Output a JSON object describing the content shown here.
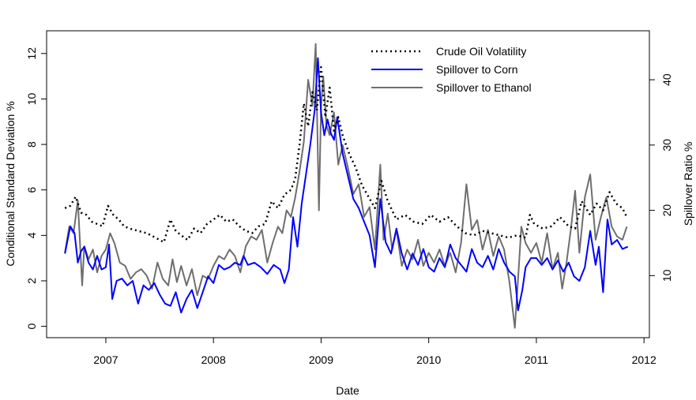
{
  "chart_data": {
    "type": "line",
    "xlabel": "Date",
    "ylabel_left": "Conditional Standard Deviation %",
    "ylabel_right": "Spillover Ratio %",
    "x_ticks": [
      "2007",
      "2008",
      "2009",
      "2010",
      "2011",
      "2012"
    ],
    "x_tick_values": [
      2007,
      2008,
      2009,
      2010,
      2011,
      2012
    ],
    "xlim": [
      2006.45,
      2012.05
    ],
    "y_left_ticks": [
      0,
      2,
      4,
      6,
      8,
      10,
      12
    ],
    "ylim_left": [
      -0.5,
      13.0
    ],
    "y_right_ticks": [
      10,
      20,
      30,
      40
    ],
    "ylim_right": [
      0.5,
      47.5
    ],
    "grid": false,
    "legend_position": "top-right",
    "series": [
      {
        "name": "Crude Oil Volatility",
        "axis": "left",
        "color": "#000000",
        "style": "dotted",
        "x": [
          2006.62,
          2006.67,
          2006.72,
          2006.77,
          2006.82,
          2006.87,
          2006.92,
          2006.97,
          2007.02,
          2007.07,
          2007.12,
          2007.17,
          2007.22,
          2007.3,
          2007.38,
          2007.46,
          2007.54,
          2007.6,
          2007.65,
          2007.7,
          2007.76,
          2007.82,
          2007.88,
          2007.94,
          2008.0,
          2008.06,
          2008.12,
          2008.18,
          2008.24,
          2008.3,
          2008.36,
          2008.42,
          2008.48,
          2008.54,
          2008.6,
          2008.66,
          2008.72,
          2008.76,
          2008.8,
          2008.84,
          2008.88,
          2008.92,
          2008.96,
          2009.0,
          2009.04,
          2009.08,
          2009.12,
          2009.16,
          2009.2,
          2009.26,
          2009.32,
          2009.38,
          2009.44,
          2009.5,
          2009.56,
          2009.62,
          2009.7,
          2009.78,
          2009.86,
          2009.94,
          2010.02,
          2010.1,
          2010.18,
          2010.26,
          2010.34,
          2010.42,
          2010.5,
          2010.58,
          2010.66,
          2010.74,
          2010.82,
          2010.9,
          2010.94,
          2010.98,
          2011.06,
          2011.14,
          2011.22,
          2011.3,
          2011.36,
          2011.42,
          2011.5,
          2011.56,
          2011.62,
          2011.68,
          2011.74,
          2011.8,
          2011.84
        ],
        "y": [
          5.2,
          5.3,
          5.7,
          5.0,
          4.9,
          4.6,
          4.5,
          4.4,
          5.3,
          4.9,
          4.7,
          4.4,
          4.3,
          4.2,
          4.1,
          3.9,
          3.7,
          4.7,
          4.2,
          4.0,
          3.8,
          4.3,
          4.1,
          4.5,
          4.7,
          4.9,
          4.6,
          4.7,
          4.4,
          4.2,
          4.1,
          4.4,
          4.5,
          5.5,
          5.2,
          5.8,
          6.0,
          6.5,
          8.0,
          9.8,
          8.8,
          10.3,
          9.5,
          11.4,
          9.2,
          10.5,
          8.6,
          9.2,
          8.4,
          7.6,
          7.0,
          6.2,
          5.7,
          5.2,
          6.4,
          5.5,
          4.7,
          4.9,
          4.6,
          4.5,
          4.9,
          4.6,
          4.8,
          4.4,
          4.1,
          4.0,
          4.2,
          4.1,
          4.0,
          3.9,
          4.0,
          3.9,
          4.9,
          4.5,
          4.3,
          4.4,
          4.8,
          4.4,
          4.3,
          5.5,
          4.9,
          5.4,
          5.1,
          5.9,
          5.4,
          5.2,
          4.8
        ]
      },
      {
        "name": "Spillover to Corn",
        "axis": "left",
        "color": "#0000ff",
        "style": "solid",
        "x": [
          2006.62,
          2006.67,
          2006.71,
          2006.74,
          2006.77,
          2006.8,
          2006.84,
          2006.88,
          2006.92,
          2006.96,
          2007.0,
          2007.03,
          2007.06,
          2007.1,
          2007.15,
          2007.2,
          2007.25,
          2007.3,
          2007.35,
          2007.4,
          2007.45,
          2007.5,
          2007.55,
          2007.6,
          2007.65,
          2007.7,
          2007.75,
          2007.8,
          2007.85,
          2007.9,
          2007.95,
          2008.0,
          2008.05,
          2008.1,
          2008.15,
          2008.2,
          2008.25,
          2008.28,
          2008.32,
          2008.38,
          2008.44,
          2008.5,
          2008.56,
          2008.62,
          2008.66,
          2008.7,
          2008.74,
          2008.78,
          2008.82,
          2008.86,
          2008.9,
          2008.94,
          2008.97,
          2009.0,
          2009.03,
          2009.06,
          2009.09,
          2009.12,
          2009.15,
          2009.2,
          2009.25,
          2009.3,
          2009.35,
          2009.4,
          2009.45,
          2009.5,
          2009.55,
          2009.6,
          2009.65,
          2009.7,
          2009.75,
          2009.8,
          2009.85,
          2009.9,
          2009.95,
          2010.0,
          2010.05,
          2010.1,
          2010.15,
          2010.2,
          2010.25,
          2010.3,
          2010.35,
          2010.4,
          2010.45,
          2010.5,
          2010.55,
          2010.6,
          2010.65,
          2010.7,
          2010.75,
          2010.8,
          2010.83,
          2010.87,
          2010.9,
          2010.95,
          2011.0,
          2011.05,
          2011.1,
          2011.15,
          2011.2,
          2011.25,
          2011.3,
          2011.35,
          2011.4,
          2011.45,
          2011.5,
          2011.55,
          2011.58,
          2011.62,
          2011.66,
          2011.7,
          2011.75,
          2011.8,
          2011.85
        ],
        "y": [
          3.2,
          4.4,
          4.1,
          2.8,
          3.3,
          3.5,
          2.8,
          2.5,
          3.1,
          2.5,
          2.6,
          3.6,
          1.2,
          2.0,
          2.1,
          1.8,
          2.0,
          1.0,
          1.8,
          1.6,
          1.9,
          1.4,
          1.0,
          0.9,
          1.5,
          0.6,
          1.2,
          1.6,
          0.8,
          1.5,
          2.2,
          1.9,
          2.7,
          2.5,
          2.6,
          2.8,
          2.7,
          3.1,
          2.7,
          2.8,
          2.6,
          2.3,
          2.7,
          2.5,
          1.9,
          2.5,
          4.8,
          3.5,
          5.4,
          6.7,
          8.0,
          9.5,
          11.8,
          9.4,
          8.4,
          9.1,
          8.5,
          8.2,
          9.2,
          7.6,
          6.6,
          5.6,
          5.2,
          4.6,
          4.0,
          2.6,
          5.6,
          3.7,
          3.2,
          4.3,
          3.2,
          2.5,
          3.2,
          2.7,
          3.4,
          2.6,
          2.4,
          3.0,
          2.6,
          3.6,
          3.0,
          2.7,
          2.4,
          3.4,
          2.8,
          2.6,
          3.1,
          2.5,
          3.4,
          2.8,
          2.4,
          2.2,
          0.7,
          1.6,
          2.6,
          3.0,
          3.0,
          2.7,
          3.0,
          2.5,
          2.9,
          2.4,
          2.8,
          2.2,
          2.0,
          2.6,
          4.2,
          2.7,
          3.5,
          1.5,
          4.7,
          3.6,
          3.8,
          3.4,
          3.5
        ]
      },
      {
        "name": "Spillover to Ethanol",
        "axis": "right",
        "color": "#6e6e6e",
        "style": "solid",
        "x": [
          2006.62,
          2006.66,
          2006.7,
          2006.74,
          2006.78,
          2006.8,
          2006.84,
          2006.88,
          2006.92,
          2006.96,
          2007.0,
          2007.04,
          2007.08,
          2007.13,
          2007.18,
          2007.23,
          2007.28,
          2007.33,
          2007.38,
          2007.43,
          2007.48,
          2007.53,
          2007.58,
          2007.62,
          2007.66,
          2007.7,
          2007.75,
          2007.8,
          2007.85,
          2007.9,
          2007.95,
          2008.0,
          2008.05,
          2008.1,
          2008.15,
          2008.2,
          2008.25,
          2008.3,
          2008.35,
          2008.4,
          2008.45,
          2008.5,
          2008.55,
          2008.6,
          2008.64,
          2008.68,
          2008.72,
          2008.76,
          2008.8,
          2008.84,
          2008.88,
          2008.92,
          2008.95,
          2008.98,
          2009.0,
          2009.02,
          2009.05,
          2009.08,
          2009.12,
          2009.16,
          2009.2,
          2009.25,
          2009.3,
          2009.35,
          2009.4,
          2009.45,
          2009.5,
          2009.55,
          2009.58,
          2009.62,
          2009.66,
          2009.7,
          2009.75,
          2009.8,
          2009.85,
          2009.9,
          2009.95,
          2010.0,
          2010.05,
          2010.1,
          2010.15,
          2010.2,
          2010.25,
          2010.3,
          2010.35,
          2010.4,
          2010.45,
          2010.5,
          2010.55,
          2010.6,
          2010.65,
          2010.7,
          2010.75,
          2010.8,
          2010.83,
          2010.86,
          2010.9,
          2010.95,
          2011.0,
          2011.05,
          2011.1,
          2011.15,
          2011.2,
          2011.24,
          2011.28,
          2011.32,
          2011.36,
          2011.4,
          2011.45,
          2011.5,
          2011.55,
          2011.6,
          2011.65,
          2011.7,
          2011.75,
          2011.8,
          2011.84
        ],
        "y": [
          13.5,
          17.5,
          16.5,
          21.5,
          8.5,
          14.5,
          12.5,
          14.0,
          10.5,
          13.0,
          14.0,
          16.5,
          15.0,
          12.0,
          11.5,
          9.5,
          10.5,
          11.0,
          10.0,
          8.0,
          12.0,
          9.5,
          8.5,
          12.5,
          9.0,
          11.5,
          8.5,
          11.0,
          7.0,
          10.0,
          9.5,
          11.5,
          13.0,
          12.5,
          14.0,
          13.0,
          10.5,
          14.5,
          16.0,
          15.5,
          17.0,
          12.0,
          15.0,
          17.5,
          16.5,
          20.0,
          19.0,
          22.0,
          26.0,
          30.5,
          40.0,
          36.0,
          45.5,
          20.0,
          36.0,
          40.5,
          33.0,
          31.5,
          35.0,
          27.0,
          30.0,
          26.5,
          22.5,
          24.0,
          19.0,
          20.5,
          14.0,
          27.0,
          15.5,
          19.5,
          14.0,
          17.0,
          11.5,
          14.0,
          12.5,
          15.5,
          11.5,
          13.5,
          12.0,
          14.0,
          11.5,
          13.5,
          10.5,
          15.0,
          24.0,
          17.0,
          18.5,
          14.0,
          17.0,
          13.0,
          16.0,
          14.0,
          9.0,
          2.0,
          9.5,
          17.5,
          15.0,
          13.5,
          15.0,
          12.0,
          16.5,
          11.0,
          13.5,
          8.0,
          12.0,
          17.0,
          23.0,
          13.5,
          22.0,
          25.5,
          15.5,
          19.0,
          22.0,
          17.5,
          16.0,
          15.5,
          17.5
        ]
      }
    ]
  }
}
